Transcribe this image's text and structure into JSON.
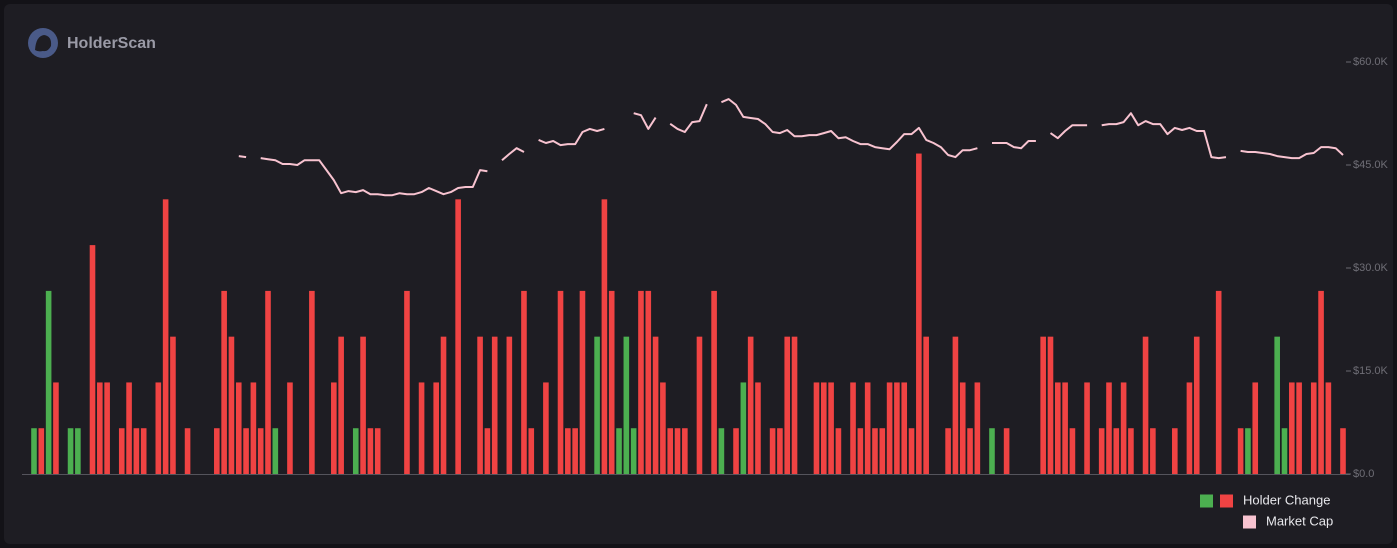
{
  "header": {
    "logo_text": "HolderScan"
  },
  "chart_data": {
    "type": "combo",
    "categories": [
      null,
      null,
      null,
      null,
      null,
      null,
      null,
      null,
      null,
      null,
      null,
      null,
      null,
      null,
      null,
      null,
      null,
      null,
      null,
      null,
      null,
      null,
      null,
      null,
      null,
      null,
      null,
      null,
      null,
      null,
      null,
      null,
      null,
      null,
      null,
      null,
      null,
      null,
      null,
      null,
      null,
      null,
      null,
      null,
      null,
      null,
      null,
      null,
      null,
      null,
      null,
      null,
      null,
      null,
      null,
      null,
      null,
      null,
      null,
      null,
      null,
      null,
      null,
      null,
      null,
      null,
      null,
      null,
      null,
      null,
      null,
      null,
      null,
      null,
      null,
      null,
      null,
      null,
      null,
      null,
      null,
      null,
      null,
      null,
      null,
      null,
      null,
      null,
      null,
      null,
      null,
      null,
      null,
      null,
      null,
      null,
      null,
      null,
      null,
      null,
      null,
      null,
      null,
      null,
      null,
      null,
      null,
      null,
      null,
      null,
      null,
      null,
      null,
      null,
      null,
      null,
      null,
      null,
      null,
      null,
      null,
      null,
      null,
      null,
      null,
      null,
      null,
      null,
      null,
      null,
      null,
      null,
      null,
      null,
      null,
      null,
      null,
      null,
      null,
      null,
      null,
      null,
      null,
      null,
      null,
      null,
      null,
      null,
      null,
      null,
      null,
      null,
      null,
      null,
      null,
      null,
      null,
      null,
      null,
      null,
      null,
      null,
      null,
      null,
      null,
      null,
      null,
      null,
      null,
      null,
      null,
      null,
      null,
      null,
      null,
      null,
      null,
      null,
      null,
      null
    ],
    "ylim": [
      0,
      9
    ],
    "y2lim": [
      0,
      60000
    ],
    "y2ticks": [
      {
        "value": 0,
        "label": "$0.0"
      },
      {
        "value": 15000,
        "label": "$15.0K"
      },
      {
        "value": 30000,
        "label": "$30.0K"
      },
      {
        "value": 45000,
        "label": "$45.0K"
      },
      {
        "value": 60000,
        "label": "$60.0K"
      }
    ],
    "series": [
      {
        "name": "Holder Change",
        "type": "bar",
        "values": [
          1,
          1,
          4,
          2,
          0,
          1,
          1,
          0,
          5,
          2,
          2,
          0,
          1,
          2,
          1,
          1,
          0,
          2,
          6,
          3,
          0,
          1,
          0,
          0,
          0,
          1,
          4,
          3,
          2,
          1,
          2,
          1,
          4,
          1,
          0,
          2,
          0,
          0,
          4,
          0,
          0,
          2,
          3,
          0,
          1,
          3,
          1,
          1,
          0,
          0,
          0,
          4,
          0,
          2,
          0,
          2,
          3,
          0,
          6,
          0,
          0,
          3,
          1,
          3,
          0,
          3,
          0,
          4,
          1,
          0,
          2,
          0,
          4,
          1,
          1,
          4,
          0,
          3,
          6,
          4,
          1,
          3,
          1,
          4,
          4,
          3,
          2,
          1,
          1,
          1,
          0,
          3,
          0,
          4,
          1,
          0,
          1,
          2,
          3,
          2,
          0,
          1,
          1,
          3,
          3,
          0,
          0,
          2,
          2,
          2,
          1,
          0,
          2,
          1,
          2,
          1,
          1,
          2,
          2,
          2,
          1,
          7,
          3,
          0,
          0,
          1,
          3,
          2,
          1,
          2,
          0,
          1,
          0,
          1,
          0,
          0,
          0,
          0,
          3,
          3,
          2,
          2,
          1,
          0,
          2,
          0,
          1,
          2,
          1,
          2,
          1,
          0,
          3,
          1,
          0,
          0,
          1,
          0,
          2,
          3,
          0,
          0,
          4,
          0,
          0,
          1,
          1,
          2,
          0,
          0,
          3,
          1,
          2,
          2,
          0,
          2,
          4,
          2,
          0,
          1
        ],
        "colors": [
          "#4caf50",
          "#f04343",
          "#4caf50",
          "#f04343",
          "#f04343",
          "#4caf50",
          "#4caf50",
          "#f04343",
          "#f04343",
          "#f04343",
          "#f04343",
          "#f04343",
          "#f04343",
          "#f04343",
          "#f04343",
          "#f04343",
          "#f04343",
          "#f04343",
          "#f04343",
          "#f04343",
          "#f04343",
          "#f04343",
          "#f04343",
          "#f04343",
          "#f04343",
          "#f04343",
          "#f04343",
          "#f04343",
          "#f04343",
          "#f04343",
          "#f04343",
          "#f04343",
          "#f04343",
          "#4caf50",
          "#f04343",
          "#f04343",
          "#f04343",
          "#f04343",
          "#f04343",
          "#f04343",
          "#f04343",
          "#f04343",
          "#f04343",
          "#f04343",
          "#4caf50",
          "#f04343",
          "#f04343",
          "#f04343",
          "#f04343",
          "#f04343",
          "#f04343",
          "#f04343",
          "#f04343",
          "#f04343",
          "#f04343",
          "#f04343",
          "#f04343",
          "#f04343",
          "#f04343",
          "#f04343",
          "#f04343",
          "#f04343",
          "#f04343",
          "#f04343",
          "#f04343",
          "#f04343",
          "#f04343",
          "#f04343",
          "#f04343",
          "#f04343",
          "#f04343",
          "#f04343",
          "#f04343",
          "#f04343",
          "#f04343",
          "#f04343",
          "#f04343",
          "#4caf50",
          "#f04343",
          "#f04343",
          "#4caf50",
          "#4caf50",
          "#4caf50",
          "#f04343",
          "#f04343",
          "#f04343",
          "#f04343",
          "#f04343",
          "#f04343",
          "#f04343",
          "#f04343",
          "#f04343",
          "#f04343",
          "#f04343",
          "#4caf50",
          "#f04343",
          "#f04343",
          "#4caf50",
          "#f04343",
          "#f04343",
          "#f04343",
          "#f04343",
          "#f04343",
          "#f04343",
          "#f04343",
          "#f04343",
          "#f04343",
          "#f04343",
          "#f04343",
          "#f04343",
          "#f04343",
          "#f04343",
          "#f04343",
          "#f04343",
          "#f04343",
          "#f04343",
          "#f04343",
          "#f04343",
          "#f04343",
          "#f04343",
          "#f04343",
          "#f04343",
          "#f04343",
          "#f04343",
          "#f04343",
          "#f04343",
          "#f04343",
          "#f04343",
          "#f04343",
          "#f04343",
          "#f04343",
          "#4caf50",
          "#f04343",
          "#f04343",
          "#f04343",
          "#f04343",
          "#f04343",
          "#f04343",
          "#f04343",
          "#f04343",
          "#f04343",
          "#f04343",
          "#f04343",
          "#f04343",
          "#f04343",
          "#f04343",
          "#f04343",
          "#f04343",
          "#f04343",
          "#f04343",
          "#f04343",
          "#f04343",
          "#f04343",
          "#f04343",
          "#f04343",
          "#f04343",
          "#f04343",
          "#f04343",
          "#f04343",
          "#f04343",
          "#f04343",
          "#f04343",
          "#f04343",
          "#f04343",
          "#f04343",
          "#f04343",
          "#4caf50",
          "#f04343",
          "#f04343",
          "#f04343",
          "#4caf50",
          "#4caf50",
          "#f04343",
          "#f04343",
          "#f04343",
          "#f04343",
          "#f04343",
          "#f04343",
          "#f04343",
          "#f04343"
        ]
      },
      {
        "name": "Market Cap",
        "type": "line",
        "axis": "y2",
        "color": "#f8c3d0",
        "values": [
          null,
          null,
          null,
          null,
          null,
          null,
          null,
          null,
          null,
          null,
          null,
          null,
          null,
          null,
          null,
          null,
          null,
          null,
          null,
          null,
          null,
          null,
          null,
          null,
          null,
          null,
          null,
          null,
          46300,
          46150,
          null,
          46000,
          45850,
          45700,
          45150,
          45150,
          45000,
          45700,
          45700,
          45700,
          44250,
          42800,
          40900,
          41200,
          41050,
          41350,
          40750,
          40750,
          40600,
          40600,
          40900,
          40750,
          40750,
          41050,
          41650,
          41200,
          40750,
          41050,
          41650,
          41800,
          41800,
          44250,
          44100,
          null,
          45700,
          46600,
          47450,
          46900,
          null,
          48650,
          48200,
          48500,
          47900,
          48050,
          48050,
          49800,
          50250,
          49950,
          50250,
          null,
          null,
          null,
          52550,
          52250,
          50250,
          51900,
          null,
          51000,
          50250,
          49800,
          51250,
          51400,
          53850,
          null,
          54150,
          54600,
          53750,
          52000,
          51850,
          51700,
          50950,
          49800,
          49650,
          50100,
          49200,
          49200,
          49350,
          49350,
          49650,
          49950,
          48900,
          49050,
          48500,
          48050,
          48050,
          47600,
          47450,
          47300,
          48350,
          49500,
          49500,
          50400,
          48650,
          48200,
          47600,
          46450,
          46150,
          47150,
          47150,
          47450,
          null,
          48200,
          48200,
          48200,
          47600,
          47450,
          48500,
          48500,
          null,
          49650,
          48900,
          49950,
          50800,
          50800,
          50800,
          null,
          50800,
          50950,
          50950,
          51250,
          52550,
          50800,
          51400,
          50950,
          50950,
          49500,
          50400,
          50100,
          50400,
          49950,
          49950,
          46150,
          46000,
          46150,
          null,
          47050,
          46900,
          46900,
          46750,
          46600,
          46300,
          46150,
          46000,
          46000,
          46600,
          46750,
          47600,
          47600,
          47450,
          46450
        ]
      }
    ]
  }
}
